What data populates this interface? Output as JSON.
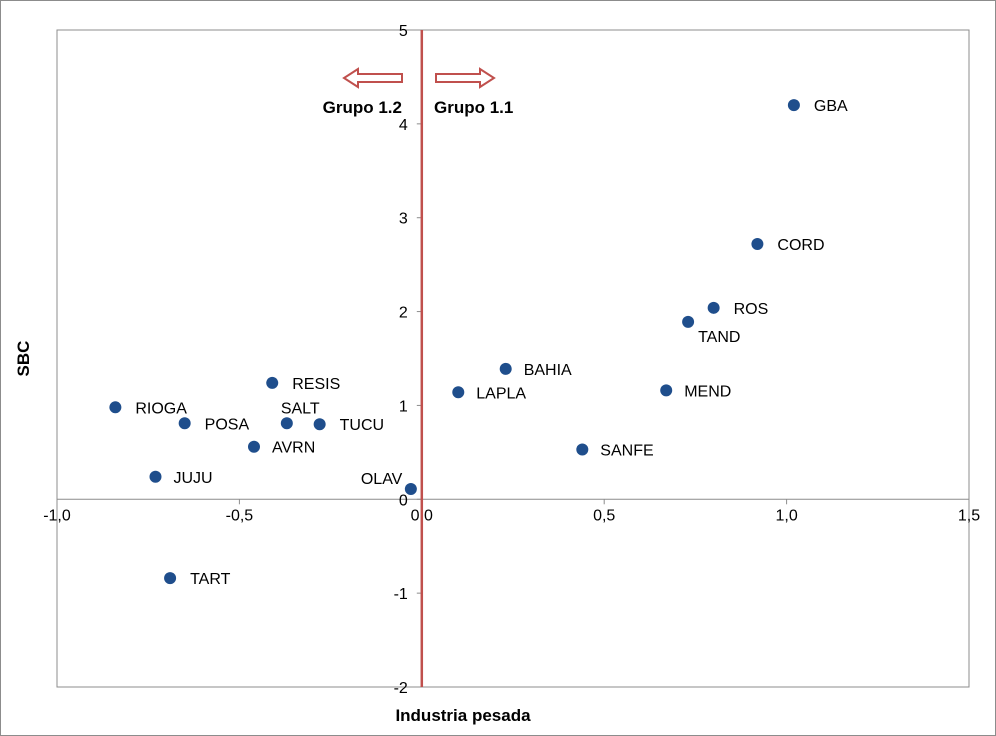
{
  "chart_data": {
    "type": "scatter",
    "title": "",
    "xlabel": "Industria pesada",
    "ylabel": "SBC",
    "xlim": [
      -1.0,
      1.5
    ],
    "ylim": [
      -2,
      5
    ],
    "x_ticks": [
      "-1,0",
      "-0,5",
      "0,0",
      "0,5",
      "1,0",
      "1,5"
    ],
    "x_tick_values": [
      -1.0,
      -0.5,
      0.0,
      0.5,
      1.0,
      1.5
    ],
    "y_ticks": [
      "-2",
      "-1",
      "0",
      "1",
      "2",
      "3",
      "4",
      "5"
    ],
    "y_tick_values": [
      -2,
      -1,
      0,
      1,
      2,
      3,
      4,
      5
    ],
    "grid": false,
    "point_color": "#1f4e8c",
    "divider_color": "#c0504d",
    "points": [
      {
        "label": "GBA",
        "x": 1.02,
        "y": 4.2
      },
      {
        "label": "CORD",
        "x": 0.92,
        "y": 2.72
      },
      {
        "label": "ROS",
        "x": 0.8,
        "y": 2.04
      },
      {
        "label": "TAND",
        "x": 0.73,
        "y": 1.89
      },
      {
        "label": "MEND",
        "x": 0.67,
        "y": 1.16
      },
      {
        "label": "BAHIA",
        "x": 0.23,
        "y": 1.39
      },
      {
        "label": "LAPLA",
        "x": 0.1,
        "y": 1.14
      },
      {
        "label": "SANFE",
        "x": 0.44,
        "y": 0.53
      },
      {
        "label": "OLAV",
        "x": -0.03,
        "y": 0.11
      },
      {
        "label": "RESIS",
        "x": -0.41,
        "y": 1.24
      },
      {
        "label": "SALT",
        "x": -0.37,
        "y": 0.81
      },
      {
        "label": "TUCU",
        "x": -0.28,
        "y": 0.8
      },
      {
        "label": "RIOGA",
        "x": -0.84,
        "y": 0.98
      },
      {
        "label": "POSA",
        "x": -0.65,
        "y": 0.81
      },
      {
        "label": "AVRN",
        "x": -0.46,
        "y": 0.56
      },
      {
        "label": "JUJU",
        "x": -0.73,
        "y": 0.24
      },
      {
        "label": "TART",
        "x": -0.69,
        "y": -0.84
      }
    ],
    "annotations": [
      {
        "text": "Grupo 1.2",
        "direction": "left"
      },
      {
        "text": "Grupo 1.1",
        "direction": "right"
      }
    ]
  }
}
